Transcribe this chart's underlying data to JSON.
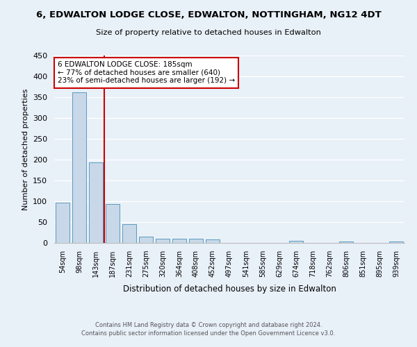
{
  "title": "6, EDWALTON LODGE CLOSE, EDWALTON, NOTTINGHAM, NG12 4DT",
  "subtitle": "Size of property relative to detached houses in Edwalton",
  "xlabel": "Distribution of detached houses by size in Edwalton",
  "ylabel": "Number of detached properties",
  "bar_labels": [
    "54sqm",
    "98sqm",
    "143sqm",
    "187sqm",
    "231sqm",
    "275sqm",
    "320sqm",
    "364sqm",
    "408sqm",
    "452sqm",
    "497sqm",
    "541sqm",
    "585sqm",
    "629sqm",
    "674sqm",
    "718sqm",
    "762sqm",
    "806sqm",
    "851sqm",
    "895sqm",
    "939sqm"
  ],
  "bar_values": [
    97,
    362,
    193,
    93,
    45,
    15,
    10,
    10,
    10,
    8,
    0,
    0,
    0,
    0,
    5,
    0,
    0,
    3,
    0,
    0,
    3
  ],
  "bar_color": "#c8d8e8",
  "bar_edge_color": "#5a9abf",
  "background_color": "#e8f0f8",
  "grid_color": "#ffffff",
  "ylim": [
    0,
    450
  ],
  "yticks": [
    0,
    50,
    100,
    150,
    200,
    250,
    300,
    350,
    400,
    450
  ],
  "vline_color": "#cc0000",
  "annotation_text": "6 EDWALTON LODGE CLOSE: 185sqm\n← 77% of detached houses are smaller (640)\n23% of semi-detached houses are larger (192) →",
  "annotation_box_color": "#ffffff",
  "annotation_box_edge_color": "#cc0000",
  "footer_line1": "Contains HM Land Registry data © Crown copyright and database right 2024.",
  "footer_line2": "Contains public sector information licensed under the Open Government Licence v3.0."
}
